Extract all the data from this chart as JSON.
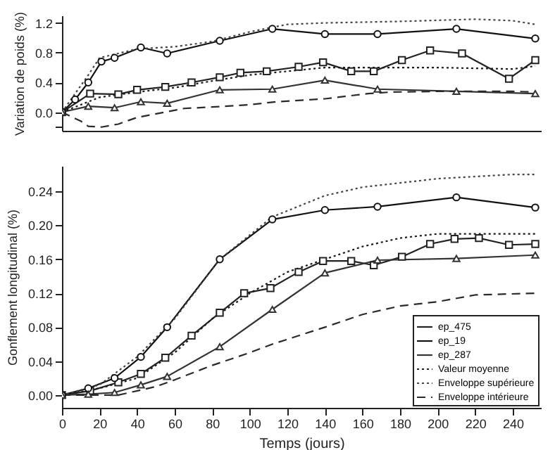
{
  "chart_data": [
    {
      "type": "line",
      "ylabel": "Variation de poids (%)",
      "xlim": [
        0,
        255
      ],
      "ylim": [
        -0.25,
        1.3
      ],
      "yticks": [
        {
          "value": -0.2,
          "label": null
        },
        {
          "value": 0,
          "label": "0.0"
        },
        0.4,
        0.8,
        1.2
      ],
      "tick_labels": "y",
      "grid": false,
      "legend": false,
      "series": [
        {
          "color": "#222222",
          "marker": "square",
          "line_style": "solid",
          "x": [
            0,
            15,
            30,
            40,
            55,
            69,
            84,
            95,
            109,
            126,
            139,
            154,
            166,
            181,
            196,
            213,
            238,
            252
          ],
          "values": [
            0.0,
            0.25,
            0.24,
            0.3,
            0.34,
            0.4,
            0.47,
            0.53,
            0.55,
            0.61,
            0.67,
            0.55,
            0.55,
            0.7,
            0.83,
            0.79,
            0.45,
            0.7
          ]
        },
        {
          "color": "#111111",
          "marker": "circle",
          "line_style": "solid",
          "x": [
            0,
            7,
            14,
            21,
            28,
            42,
            56,
            84,
            112,
            140,
            168,
            210,
            252
          ],
          "values": [
            0.0,
            0.17,
            0.4,
            0.68,
            0.73,
            0.87,
            0.79,
            0.96,
            1.12,
            1.05,
            1.05,
            1.12,
            0.99
          ]
        },
        {
          "color": "#333333",
          "marker": "triangle",
          "line_style": "solid",
          "x": [
            0,
            14,
            28,
            42,
            56,
            84,
            112,
            140,
            168,
            210,
            252
          ],
          "values": [
            0.0,
            0.08,
            0.06,
            0.14,
            0.12,
            0.3,
            0.31,
            0.43,
            0.31,
            0.28,
            0.25
          ]
        },
        {
          "color": "#1a1a1a",
          "marker": "none",
          "line_style": "dotted",
          "x": [
            0,
            20,
            40,
            60,
            80,
            100,
            120,
            140,
            160,
            200,
            240,
            252
          ],
          "values": [
            0.0,
            0.2,
            0.27,
            0.33,
            0.42,
            0.5,
            0.55,
            0.6,
            0.6,
            0.6,
            0.58,
            0.62
          ]
        },
        {
          "color": "#444444",
          "marker": "none",
          "line_style": "dotted",
          "x": [
            0,
            14,
            20,
            40,
            60,
            80,
            100,
            120,
            140,
            180,
            220,
            240,
            252
          ],
          "values": [
            0.0,
            0.5,
            0.73,
            0.85,
            0.88,
            0.95,
            1.08,
            1.18,
            1.2,
            1.22,
            1.25,
            1.23,
            1.18
          ]
        },
        {
          "color": "#2a2a2a",
          "marker": "none",
          "line_style": "dashed",
          "x": [
            0,
            10,
            14,
            21,
            30,
            40,
            65,
            80,
            100,
            114,
            140,
            163,
            175,
            200,
            240,
            252
          ],
          "values": [
            0.0,
            -0.12,
            -0.19,
            -0.2,
            -0.16,
            -0.07,
            0.05,
            0.07,
            0.1,
            0.14,
            0.18,
            0.25,
            0.27,
            0.28,
            0.28,
            0.27
          ]
        }
      ]
    },
    {
      "type": "line",
      "xlabel": "Temps (jours)",
      "ylabel": "Gonflement longitudinal (%)",
      "xlim": [
        0,
        255
      ],
      "xticks": [
        0,
        20,
        40,
        60,
        80,
        100,
        120,
        140,
        160,
        180,
        200,
        220,
        240
      ],
      "ylim": [
        -0.015,
        0.27
      ],
      "yticks": [
        {
          "value": 0,
          "label": "0.00"
        },
        0.04,
        0.08,
        0.12,
        0.16,
        {
          "value": 0.2,
          "label": "0.20"
        },
        0.24
      ],
      "grid": false,
      "legend": "bottom right",
      "series": [
        {
          "name": "ep_475",
          "color": "#222222",
          "marker": "square",
          "line_style": "solid",
          "x": [
            0,
            15,
            30,
            42,
            55,
            69,
            84,
            97,
            111,
            126,
            139,
            154,
            166,
            181,
            196,
            209,
            222,
            238,
            252
          ],
          "values": [
            0.0,
            0.005,
            0.015,
            0.025,
            0.044,
            0.07,
            0.097,
            0.12,
            0.126,
            0.145,
            0.158,
            0.158,
            0.153,
            0.163,
            0.178,
            0.184,
            0.185,
            0.177,
            0.178
          ]
        },
        {
          "name": "ep_19",
          "color": "#111111",
          "marker": "circle",
          "line_style": "solid",
          "x": [
            0,
            14,
            28,
            42,
            56,
            84,
            112,
            140,
            168,
            210,
            252
          ],
          "values": [
            0.0,
            0.008,
            0.02,
            0.045,
            0.08,
            0.16,
            0.207,
            0.218,
            0.222,
            0.233,
            0.221
          ]
        },
        {
          "name": "ep_287",
          "color": "#333333",
          "marker": "triangle",
          "line_style": "solid",
          "x": [
            0,
            14,
            28,
            42,
            56,
            84,
            112,
            140,
            168,
            210,
            252
          ],
          "values": [
            0.0,
            0.001,
            0.003,
            0.012,
            0.022,
            0.057,
            0.101,
            0.144,
            0.159,
            0.161,
            0.165
          ]
        },
        {
          "name": "Valeur moyenne",
          "color": "#1a1a1a",
          "marker": "none",
          "line_style": "dotted",
          "x": [
            0,
            20,
            40,
            60,
            80,
            100,
            120,
            140,
            160,
            180,
            200,
            240,
            252
          ],
          "values": [
            0.0,
            0.008,
            0.02,
            0.05,
            0.09,
            0.12,
            0.145,
            0.16,
            0.175,
            0.185,
            0.19,
            0.19,
            0.19
          ]
        },
        {
          "name": "Enveloppe supérieure",
          "color": "#444444",
          "marker": "none",
          "line_style": "dotted",
          "x": [
            0,
            20,
            40,
            60,
            84,
            112,
            140,
            160,
            180,
            200,
            240,
            252
          ],
          "values": [
            0.0,
            0.012,
            0.045,
            0.09,
            0.16,
            0.21,
            0.235,
            0.245,
            0.25,
            0.255,
            0.26,
            0.26
          ]
        },
        {
          "name": "Enveloppe intérieure",
          "color": "#2a2a2a",
          "marker": "none",
          "line_style": "dashed",
          "x": [
            0,
            30,
            50,
            60,
            80,
            100,
            112,
            140,
            160,
            180,
            200,
            220,
            252
          ],
          "values": [
            0.0,
            0.0,
            0.01,
            0.018,
            0.035,
            0.05,
            0.06,
            0.08,
            0.095,
            0.105,
            0.11,
            0.118,
            0.12
          ]
        }
      ]
    }
  ]
}
